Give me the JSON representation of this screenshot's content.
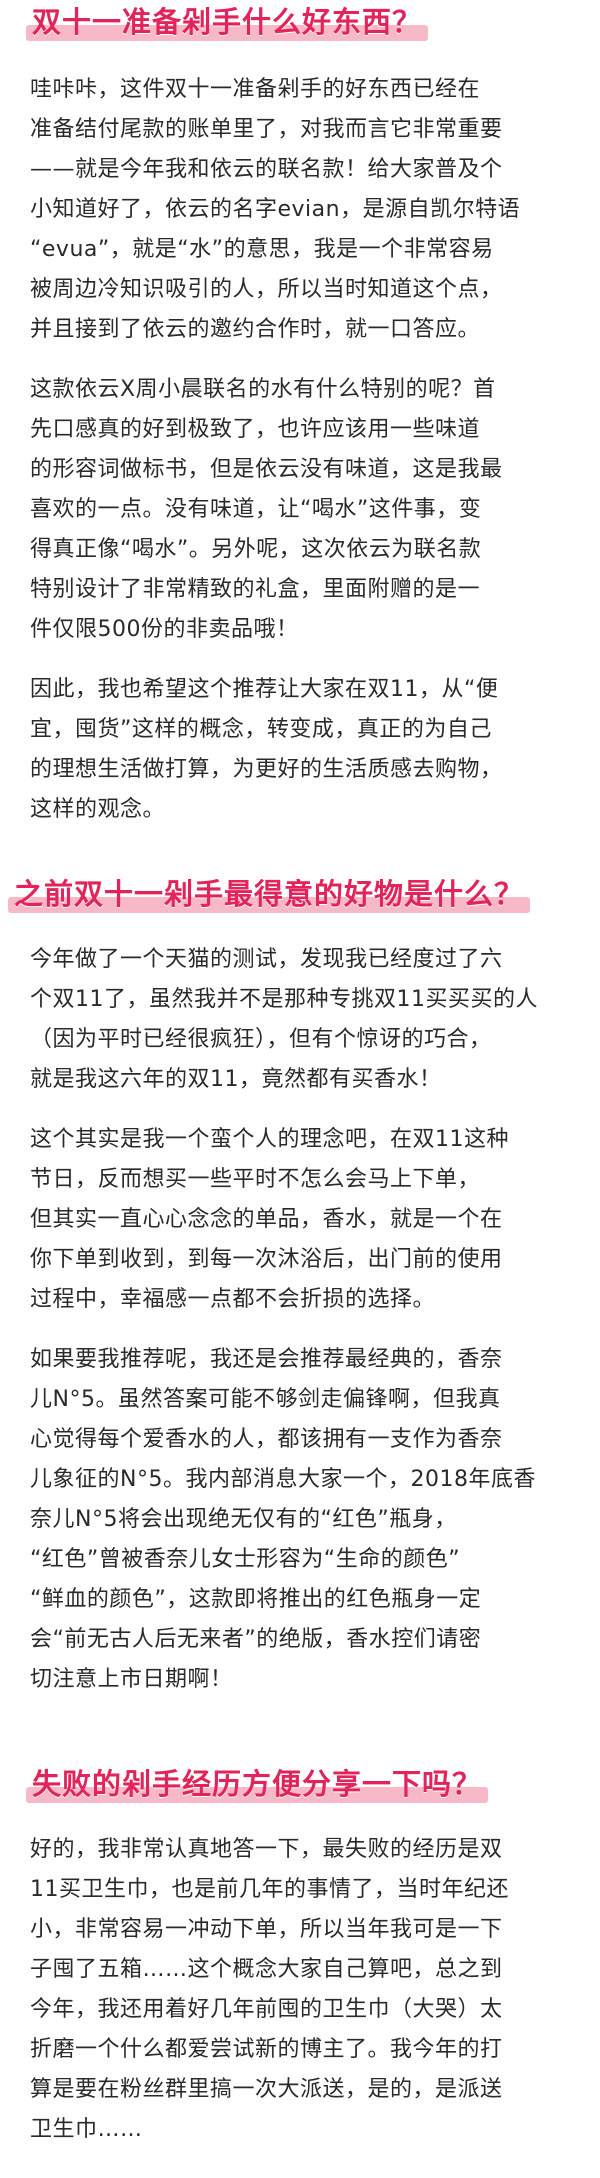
{
  "sections": [
    {
      "heading": "双十一准备剁手什么好东西？",
      "paragraphs": [
        [
          "哇咔咔，这件双十一准备剁手的好东西已经在",
          "准备结付尾款的账单里了，对我而言它非常重要",
          "——就是今年我和依云的联名款！给大家普及个",
          "小知道好了，依云的名字evian，是源自凯尔特语",
          "“evua”，就是“水”的意思，我是一个非常容易",
          "被周边冷知识吸引的人，所以当时知道这个点，",
          "并且接到了依云的邀约合作时，就一口答应。"
        ],
        [
          "这款依云X周小晨联名的水有什么特别的呢？首",
          "先口感真的好到极致了，也许应该用一些味道",
          "的形容词做标书，但是依云没有味道，这是我最",
          "喜欢的一点。没有味道，让“喝水”这件事，变",
          "得真正像“喝水”。另外呢，这次依云为联名款",
          "特别设计了非常精致的礼盒，里面附赠的是一",
          "件仅限500份的非卖品哦！"
        ],
        [
          "因此，我也希望这个推荐让大家在双11，从“便",
          "宜，囤货”这样的概念，转变成，真正的为自己",
          "的理想生活做打算，为更好的生活质感去购物，",
          "这样的观念。"
        ]
      ]
    },
    {
      "heading": "之前双十一剁手最得意的好物是什么？",
      "paragraphs": [
        [
          "今年做了一个天猫的测试，发现我已经度过了六",
          "个双11了，虽然我并不是那种专挑双11买买买的人",
          "（因为平时已经很疯狂），但有个惊讶的巧合，",
          "就是我这六年的双11，竟然都有买香水！"
        ],
        [
          "这个其实是我一个蛮个人的理念吧，在双11这种",
          "节日，反而想买一些平时不怎么会马上下单，",
          "但其实一直心心念念的单品，香水，就是一个在",
          "你下单到收到，到每一次沐浴后，出门前的使用",
          "过程中，幸福感一点都不会折损的选择。"
        ],
        [
          "如果要我推荐呢，我还是会推荐最经典的，香奈",
          "儿N°5。虽然答案可能不够剑走偏锋啊，但我真",
          "心觉得每个爱香水的人，都该拥有一支作为香奈",
          "儿象征的N°5。我内部消息大家一个，2018年底香",
          "奈儿N°5将会出现绝无仅有的“红色”瓶身，",
          "“红色”曾被香奈儿女士形容为“生命的颜色”",
          "“鲜血的颜色”，这款即将推出的红色瓶身一定",
          "会“前无古人后无来者”的绝版，香水控们请密",
          "切注意上市日期啊！"
        ]
      ]
    },
    {
      "heading": "失败的剁手经历方便分享一下吗？",
      "paragraphs": [
        [
          "好的，我非常认真地答一下，最失败的经历是双",
          "11买卫生巾，也是前几年的事情了，当时年纪还",
          "小，非常容易一冲动下单，所以当年我可是一下",
          "子囤了五箱……这个概念大家自己算吧，总之到",
          "今年，我还用着好几年前囤的卫生巾（大哭）太",
          "折磨一个什么都爱尝试新的博主了。我今年的打",
          "算是要在粉丝群里搞一次大派送，是的，是派送",
          "卫生巾……"
        ]
      ]
    }
  ]
}
